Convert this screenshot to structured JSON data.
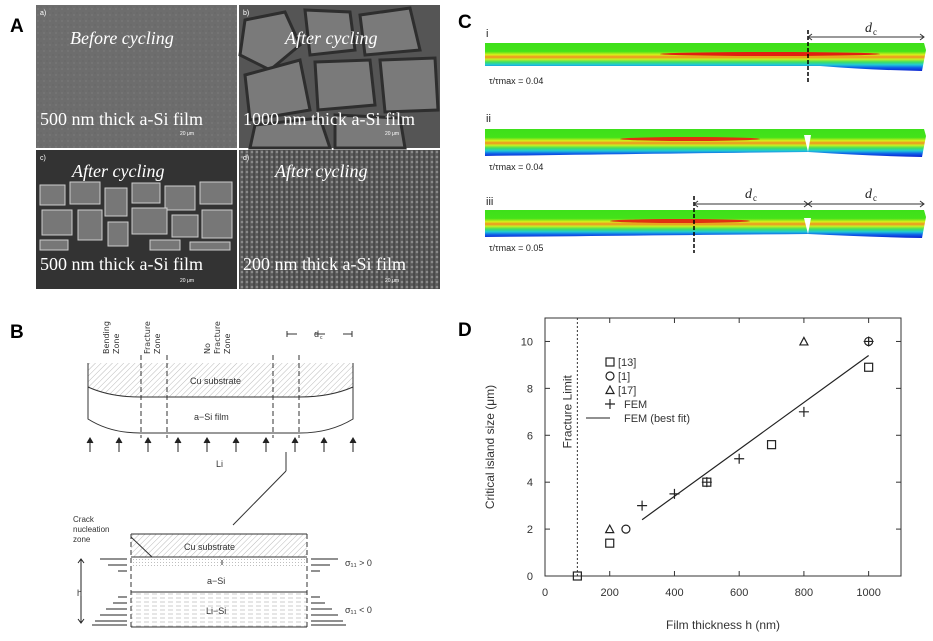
{
  "panels": {
    "a": "A",
    "b": "B",
    "c": "C",
    "d": "D"
  },
  "panel_a": {
    "tiles": [
      {
        "tag": "a)",
        "title": "Before cycling",
        "caption": "500 nm thick a-Si film",
        "scale": "20 μm"
      },
      {
        "tag": "b)",
        "title": "After cycling",
        "caption": "1000 nm thick a-Si film",
        "scale": "20 μm"
      },
      {
        "tag": "c)",
        "title": "After cycling",
        "caption": "500 nm thick a-Si film",
        "scale": "20 μm"
      },
      {
        "tag": "d)",
        "title": "After cycling",
        "caption": "200 nm thick a-Si film",
        "scale": "20 μm"
      }
    ]
  },
  "panel_b": {
    "zones": [
      "Bending",
      "Zone",
      "Fracture",
      "Zone",
      "No",
      "Fracture",
      "Zone"
    ],
    "dc": "d",
    "dc_sub": "c",
    "cu": "Cu substrate",
    "film": "a−Si film",
    "li": "Li",
    "crack": [
      "Crack",
      "nucleation",
      "zone"
    ],
    "asi": "a−Si",
    "lisi": "Li−Si",
    "h": "h",
    "sigma_pos": "σ₁₁ > 0",
    "sigma_neg": "σ₁₁ < 0"
  },
  "panel_c": {
    "rows": [
      {
        "label": "i",
        "ratio": "τ/τmax = 0.04"
      },
      {
        "label": "ii",
        "ratio": "τ/τmax = 0.04"
      },
      {
        "label": "iii",
        "ratio": "τ/τmax = 0.05"
      }
    ],
    "dc": "d",
    "dc_sub": "c"
  },
  "chart_data": {
    "type": "scatter",
    "xlabel": "Film thickness h (nm)",
    "ylabel": "Critical island size (μm)",
    "xlim": [
      0,
      1100
    ],
    "ylim": [
      0,
      11
    ],
    "xticks": [
      0,
      200,
      400,
      600,
      800,
      1000
    ],
    "yticks": [
      0,
      2,
      4,
      6,
      8,
      10
    ],
    "annotation": "Fracture Limit",
    "fracture_limit_x": 100,
    "legend_placement": "top-left",
    "series": [
      {
        "name": "[13]",
        "marker": "square",
        "points": [
          [
            100,
            0
          ],
          [
            200,
            1.4
          ],
          [
            500,
            4
          ],
          [
            700,
            5.6
          ],
          [
            1000,
            8.9
          ]
        ]
      },
      {
        "name": "[1]",
        "marker": "circle",
        "points": [
          [
            250,
            2
          ],
          [
            1000,
            10
          ]
        ]
      },
      {
        "name": "[17]",
        "marker": "triangle",
        "points": [
          [
            200,
            2
          ],
          [
            800,
            10
          ]
        ]
      },
      {
        "name": "FEM",
        "marker": "plus",
        "points": [
          [
            300,
            3
          ],
          [
            400,
            3.5
          ],
          [
            500,
            4
          ],
          [
            600,
            5
          ],
          [
            800,
            7
          ],
          [
            1000,
            10
          ]
        ]
      },
      {
        "name": "FEM (best fit)",
        "marker": "line",
        "points": [
          [
            300,
            2.4
          ],
          [
            1000,
            9.4
          ]
        ]
      }
    ]
  }
}
